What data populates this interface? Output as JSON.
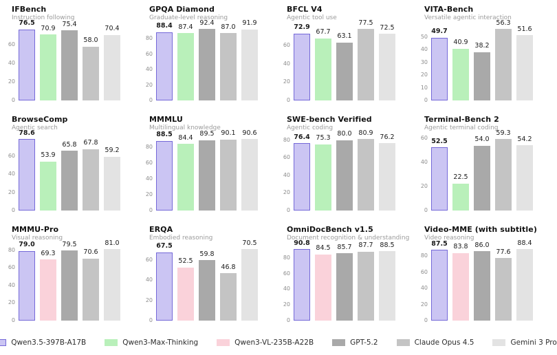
{
  "page": {
    "background": "#ffffff"
  },
  "highlight_model": "Qwen3.5-397B-A17B",
  "model_colors": {
    "Qwen3.5-397B-A17B": {
      "fill": "#cbc5f3",
      "border": "#7468d8"
    },
    "Qwen3-Max-Thinking": {
      "fill": "#b9f0ba",
      "border": null
    },
    "Qwen3-VL-235B-A22B": {
      "fill": "#fad2da",
      "border": null
    },
    "GPT-5.2": {
      "fill": "#a9a9a9",
      "border": null
    },
    "Claude Opus 4.5": {
      "fill": "#c4c4c4",
      "border": null
    },
    "Gemini 3 Pro": {
      "fill": "#e3e3e3",
      "border": null
    }
  },
  "legend": [
    {
      "label": "Qwen3.5-397B-A17B"
    },
    {
      "label": "Qwen3-Max-Thinking"
    },
    {
      "label": "Qwen3-VL-235B-A22B"
    },
    {
      "label": "GPT-5.2"
    },
    {
      "label": "Claude Opus 4.5"
    },
    {
      "label": "Gemini 3 Pro"
    }
  ],
  "chart_data": [
    {
      "type": "bar",
      "title": "IFBench",
      "subtitle": "Instruction following",
      "categories": [
        "Qwen3.5-397B-A17B",
        "Qwen3-Max-Thinking",
        "GPT-5.2",
        "Claude Opus 4.5",
        "Gemini 3 Pro"
      ],
      "values": [
        76.5,
        70.9,
        75.4,
        58.0,
        70.4
      ],
      "ylim": [
        0,
        79.8
      ],
      "yticks": [
        0,
        20,
        40,
        60
      ],
      "grid": false,
      "legend_position": "none"
    },
    {
      "type": "bar",
      "title": "GPQA Diamond",
      "subtitle": "Graduate-level reasoning",
      "categories": [
        "Qwen3.5-397B-A17B",
        "Qwen3-Max-Thinking",
        "GPT-5.2",
        "Claude Opus 4.5",
        "Gemini 3 Pro"
      ],
      "values": [
        88.4,
        87.4,
        92.4,
        87.0,
        91.9
      ],
      "ylim": [
        0,
        96.3
      ],
      "yticks": [
        0,
        20,
        40,
        60,
        80
      ],
      "grid": false,
      "legend_position": "none"
    },
    {
      "type": "bar",
      "title": "BFCL V4",
      "subtitle": "Agentic tool use",
      "categories": [
        "Qwen3.5-397B-A17B",
        "Qwen3-Max-Thinking",
        "GPT-5.2",
        "Claude Opus 4.5",
        "Gemini 3 Pro"
      ],
      "values": [
        72.9,
        67.7,
        63.1,
        77.5,
        72.5
      ],
      "ylim": [
        0,
        80.8
      ],
      "yticks": [
        0,
        20,
        40,
        60
      ],
      "grid": false,
      "legend_position": "none"
    },
    {
      "type": "bar",
      "title": "VITA-Bench",
      "subtitle": "Versatile agentic interaction",
      "categories": [
        "Qwen3.5-397B-A17B",
        "Qwen3-Max-Thinking",
        "GPT-5.2",
        "Claude Opus 4.5",
        "Gemini 3 Pro"
      ],
      "values": [
        49.7,
        40.9,
        38.2,
        56.3,
        51.6
      ],
      "ylim": [
        0,
        58.7
      ],
      "yticks": [
        0,
        10,
        20,
        30,
        40,
        50
      ],
      "grid": false,
      "legend_position": "none"
    },
    {
      "type": "bar",
      "title": "BrowseComp",
      "subtitle": "Agentic search",
      "categories": [
        "Qwen3.5-397B-A17B",
        "Qwen3-Max-Thinking",
        "GPT-5.2",
        "Claude Opus 4.5",
        "Gemini 3 Pro"
      ],
      "values": [
        78.6,
        53.9,
        65.8,
        67.8,
        59.2
      ],
      "ylim": [
        0,
        81.9
      ],
      "yticks": [
        0,
        20,
        40,
        60
      ],
      "grid": false,
      "legend_position": "none"
    },
    {
      "type": "bar",
      "title": "MMMLU",
      "subtitle": "Multilingual knowledge",
      "categories": [
        "Qwen3.5-397B-A17B",
        "Qwen3-Max-Thinking",
        "GPT-5.2",
        "Claude Opus 4.5",
        "Gemini 3 Pro"
      ],
      "values": [
        88.5,
        84.4,
        89.5,
        90.1,
        90.6
      ],
      "ylim": [
        0,
        94.4
      ],
      "yticks": [
        0,
        20,
        40,
        60,
        80
      ],
      "grid": false,
      "legend_position": "none"
    },
    {
      "type": "bar",
      "title": "SWE-bench Verified",
      "subtitle": "Agentic coding",
      "categories": [
        "Qwen3.5-397B-A17B",
        "Qwen3-Max-Thinking",
        "GPT-5.2",
        "Claude Opus 4.5",
        "Gemini 3 Pro"
      ],
      "values": [
        76.4,
        75.3,
        80.0,
        80.9,
        76.2
      ],
      "ylim": [
        0,
        84.3
      ],
      "yticks": [
        0,
        20,
        40,
        60,
        80
      ],
      "grid": false,
      "legend_position": "none"
    },
    {
      "type": "bar",
      "title": "Terminal-Bench 2",
      "subtitle": "Agentic terminal coding",
      "categories": [
        "Qwen3.5-397B-A17B",
        "Qwen3-Max-Thinking",
        "GPT-5.2",
        "Claude Opus 4.5",
        "Gemini 3 Pro"
      ],
      "values": [
        52.5,
        22.5,
        54.0,
        59.3,
        54.2
      ],
      "ylim": [
        0,
        61.8
      ],
      "yticks": [
        0,
        20,
        40,
        60
      ],
      "grid": false,
      "legend_position": "none"
    },
    {
      "type": "bar",
      "title": "MMMU-Pro",
      "subtitle": "Visual reasoning",
      "categories": [
        "Qwen3.5-397B-A17B",
        "Qwen3-VL-235B-A22B",
        "GPT-5.2",
        "Claude Opus 4.5",
        "Gemini 3 Pro"
      ],
      "values": [
        79.0,
        69.3,
        79.5,
        70.6,
        81.0
      ],
      "ylim": [
        0,
        84.4
      ],
      "yticks": [
        0,
        20,
        40,
        60,
        80
      ],
      "grid": false,
      "legend_position": "none"
    },
    {
      "type": "bar",
      "title": "ERQA",
      "subtitle": "Embodied reasoning",
      "categories": [
        "Qwen3.5-397B-A17B",
        "Qwen3-VL-235B-A22B",
        "GPT-5.2",
        "Claude Opus 4.5",
        "Gemini 3 Pro"
      ],
      "values": [
        67.5,
        52.5,
        59.8,
        46.8,
        70.5
      ],
      "ylim": [
        0,
        73.5
      ],
      "yticks": [
        0,
        20,
        40,
        60
      ],
      "grid": false,
      "legend_position": "none"
    },
    {
      "type": "bar",
      "title": "OmniDocBench v1.5",
      "subtitle": "Document recognition & understanding",
      "categories": [
        "Qwen3.5-397B-A17B",
        "Qwen3-VL-235B-A22B",
        "GPT-5.2",
        "Claude Opus 4.5",
        "Gemini 3 Pro"
      ],
      "values": [
        90.8,
        84.5,
        85.7,
        87.7,
        88.5
      ],
      "ylim": [
        0,
        94.6
      ],
      "yticks": [
        0,
        20,
        40,
        60,
        80
      ],
      "grid": false,
      "legend_position": "none"
    },
    {
      "type": "bar",
      "title": "Video-MME (with subtitle)",
      "subtitle": "Video reasoning",
      "categories": [
        "Qwen3.5-397B-A17B",
        "Qwen3-VL-235B-A22B",
        "GPT-5.2",
        "Claude Opus 4.5",
        "Gemini 3 Pro"
      ],
      "values": [
        87.5,
        83.8,
        86.0,
        77.6,
        88.4
      ],
      "ylim": [
        0,
        92.1
      ],
      "yticks": [
        0,
        20,
        40,
        60,
        80
      ],
      "grid": false,
      "legend_position": "none"
    }
  ]
}
